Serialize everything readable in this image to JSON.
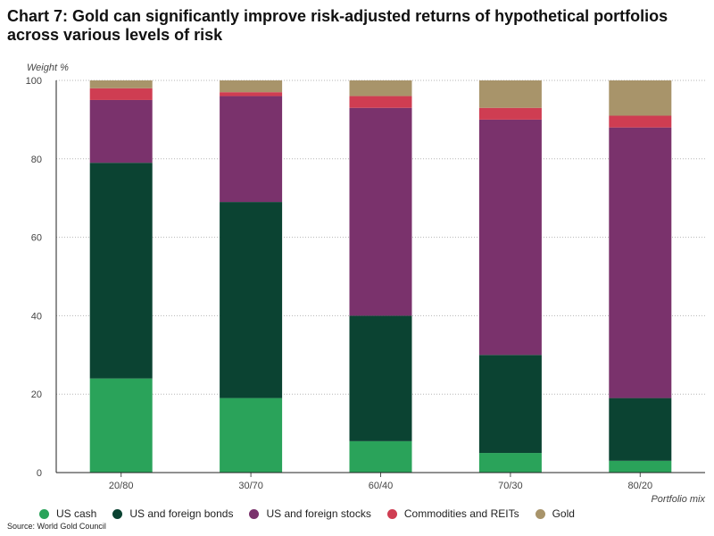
{
  "title": "Chart 7: Gold can significantly improve risk-adjusted returns of hypothetical portfolios across various levels of risk",
  "source": "Source: World Gold Council",
  "chart_data": {
    "type": "bar",
    "stacked": true,
    "ylabel": "Weight %",
    "xlabel": "Portfolio mix",
    "ylim": [
      0,
      100
    ],
    "yticks": [
      0,
      20,
      40,
      60,
      80,
      100
    ],
    "grid": true,
    "legend_position": "bottom",
    "categories": [
      "20/80",
      "30/70",
      "60/40",
      "70/30",
      "80/20"
    ],
    "series": [
      {
        "name": "US cash",
        "color": "#2aa35a",
        "values": [
          24,
          19,
          8,
          5,
          3
        ]
      },
      {
        "name": "US and foreign bonds",
        "color": "#0b4332",
        "values": [
          55,
          50,
          32,
          25,
          16
        ]
      },
      {
        "name": "US and foreign stocks",
        "color": "#7a326c",
        "values": [
          16,
          27,
          53,
          60,
          69
        ]
      },
      {
        "name": "Commodities and REITs",
        "color": "#cf3d52",
        "values": [
          3,
          1,
          3,
          3,
          3
        ]
      },
      {
        "name": "Gold",
        "color": "#a8946a",
        "values": [
          2,
          3,
          4,
          7,
          9
        ]
      }
    ]
  }
}
